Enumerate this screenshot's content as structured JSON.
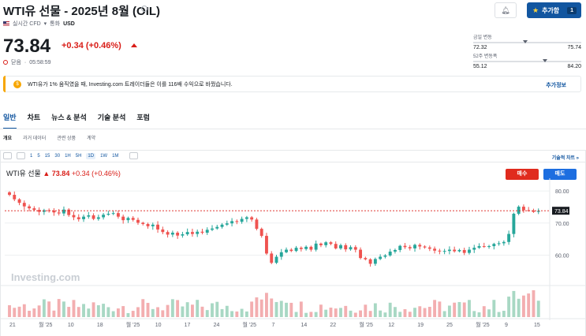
{
  "header": {
    "title": "WTI유 선물 - 2025년 8월 (OIL)",
    "market": "실시간 CFD",
    "currency_label": "통화",
    "currency": "USD"
  },
  "quote": {
    "price": "73.84",
    "change": "+0.34 (+0.46%)",
    "status": "닫음",
    "time": "05:58:59"
  },
  "actions": {
    "add_label": "추가함",
    "add_count": "1"
  },
  "ranges": {
    "day_label": "금일 변동",
    "day_low": "72.32",
    "day_high": "75.74",
    "day_position": 0.46,
    "week52_label": "52주 변동폭",
    "week52_low": "55.12",
    "week52_high": "84.20",
    "week52_position": 0.64
  },
  "banner": {
    "text": "WTI유가 1% 움직였을 때, Investing.com 트레이더들은 이를 116배 수익으로 바꿨습니다.",
    "link": "추가정보"
  },
  "tabs": [
    "일반",
    "차트",
    "뉴스 & 분석",
    "기술 분석",
    "포럼"
  ],
  "subtabs": [
    "개요",
    "과거 데이터",
    "관련 상품",
    "계약"
  ],
  "chart_toolbar": {
    "intervals": [
      "1",
      "5",
      "15",
      "30",
      "1H",
      "5H",
      "1D",
      "1W",
      "1M"
    ],
    "selected_interval": "1D",
    "tech_chart_link": "기술적 차트 »"
  },
  "chart_legend": {
    "name": "WTI유 선물",
    "price": "73.84",
    "change": "+0.34 (+0.46%)"
  },
  "trade": {
    "buy_label": "매수",
    "sell_label": "매도"
  },
  "chart_data": {
    "type": "candlestick",
    "watermark": "Investing.com",
    "y_ticks": [
      "80.00",
      "70.00",
      "60.00"
    ],
    "ylim": [
      52,
      82
    ],
    "last_price_label": "73.84",
    "x_tick_labels": [
      "21",
      "월 '25",
      "10",
      "18",
      "월 '25",
      "10",
      "17",
      "24",
      "월 '25",
      "7",
      "14",
      "22",
      "월 '25",
      "12",
      "19",
      "25",
      "월 '25",
      "9",
      "15"
    ],
    "colors": {
      "up": "#26a69a",
      "down": "#ef5350"
    },
    "close": [
      78.8,
      77.4,
      76.3,
      75.2,
      74.6,
      74.1,
      73.5,
      74.0,
      73.9,
      73.3,
      73.0,
      74.2,
      72.5,
      71.8,
      71.2,
      72.0,
      72.4,
      71.3,
      71.8,
      72.6,
      72.9,
      73.1,
      72.0,
      70.9,
      71.6,
      71.0,
      70.1,
      69.7,
      69.0,
      69.5,
      68.0,
      67.2,
      66.4,
      67.0,
      66.1,
      66.5,
      67.2,
      66.6,
      67.3,
      67.0,
      67.9,
      68.3,
      68.8,
      69.5,
      69.9,
      70.6,
      70.4,
      71.3,
      71.8,
      71.1,
      68.2,
      66.0,
      60.5,
      57.6,
      59.5,
      60.9,
      61.7,
      61.3,
      62.3,
      61.9,
      62.6,
      61.7,
      63.6,
      63.1,
      64.0,
      63.5,
      62.1,
      63.1,
      61.8,
      62.5,
      61.7,
      59.1,
      58.7,
      57.3,
      58.8,
      59.5,
      59.9,
      61.1,
      61.6,
      62.9,
      62.5,
      62.1,
      63.2,
      62.7,
      62.4,
      62.0,
      61.4,
      61.2,
      61.3,
      61.7,
      61.2,
      61.6,
      60.7,
      61.7,
      62.3,
      62.8,
      62.7,
      62.8,
      63.5,
      63.7,
      64.1,
      66.6,
      72.9,
      75.1,
      74.0,
      73.9,
      73.5,
      73.8
    ]
  }
}
